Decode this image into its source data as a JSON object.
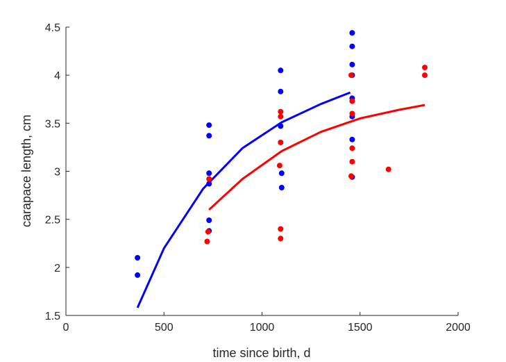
{
  "chart_data": {
    "type": "scatter",
    "xlabel": "time since birth, d",
    "ylabel": "carapace length, cm",
    "xlim": [
      0,
      2000
    ],
    "ylim": [
      1.5,
      4.5
    ],
    "xticks": [
      "0",
      "500",
      "1000",
      "1500",
      "2000"
    ],
    "yticks": [
      "1.5",
      "2",
      "2.5",
      "3",
      "3.5",
      "4",
      "4.5"
    ],
    "grid": false,
    "series": [
      {
        "color": "#0000ff",
        "points": [
          [
            365,
            2.1
          ],
          [
            365,
            1.92
          ],
          [
            730,
            3.48
          ],
          [
            730,
            3.37
          ],
          [
            730,
            2.98
          ],
          [
            730,
            2.87
          ],
          [
            730,
            2.49
          ],
          [
            730,
            2.38
          ],
          [
            1095,
            4.05
          ],
          [
            1095,
            3.83
          ],
          [
            1095,
            3.47
          ],
          [
            1100,
            2.98
          ],
          [
            1100,
            2.83
          ],
          [
            1460,
            4.44
          ],
          [
            1460,
            4.3
          ],
          [
            1460,
            4.11
          ],
          [
            1460,
            4.0
          ],
          [
            1460,
            3.76
          ],
          [
            1460,
            3.57
          ],
          [
            1460,
            3.33
          ],
          [
            1460,
            2.94
          ]
        ],
        "fit": [
          [
            365,
            1.58
          ],
          [
            500,
            2.2
          ],
          [
            700,
            2.82
          ],
          [
            900,
            3.24
          ],
          [
            1100,
            3.51
          ],
          [
            1300,
            3.7
          ],
          [
            1450,
            3.82
          ]
        ]
      },
      {
        "color": "#ff0000",
        "points": [
          [
            720,
            2.27
          ],
          [
            725,
            2.37
          ],
          [
            730,
            2.92
          ],
          [
            1090,
            3.06
          ],
          [
            1095,
            2.4
          ],
          [
            1095,
            2.3
          ],
          [
            1095,
            3.3
          ],
          [
            1095,
            3.57
          ],
          [
            1095,
            3.62
          ],
          [
            1455,
            4.0
          ],
          [
            1460,
            3.6
          ],
          [
            1460,
            3.24
          ],
          [
            1460,
            3.1
          ],
          [
            1455,
            2.95
          ],
          [
            1460,
            3.73
          ],
          [
            1645,
            3.02
          ],
          [
            1830,
            4.08
          ],
          [
            1830,
            4.0
          ]
        ],
        "fit": [
          [
            730,
            2.6
          ],
          [
            900,
            2.92
          ],
          [
            1100,
            3.21
          ],
          [
            1300,
            3.41
          ],
          [
            1500,
            3.55
          ],
          [
            1700,
            3.64
          ],
          [
            1830,
            3.69
          ]
        ]
      }
    ]
  }
}
